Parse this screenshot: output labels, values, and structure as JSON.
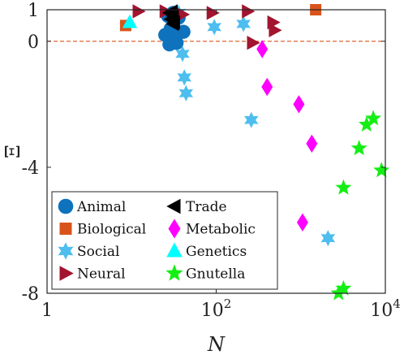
{
  "chart_data": {
    "type": "scatter",
    "xlabel": "N",
    "ylabel": "Ξ",
    "x_scale": "log",
    "xlim": [
      1,
      10000
    ],
    "ylim": [
      -8,
      1
    ],
    "x_ticks": [
      {
        "value": 1,
        "base": "1",
        "exp": ""
      },
      {
        "value": 100,
        "base": "10",
        "exp": "2"
      },
      {
        "value": 10000,
        "base": "10",
        "exp": "4"
      }
    ],
    "y_ticks": [
      {
        "value": 1,
        "label": "1"
      },
      {
        "value": 0,
        "label": "0"
      },
      {
        "value": -4,
        "label": "-4"
      },
      {
        "value": -8,
        "label": "-8"
      }
    ],
    "reference_line": {
      "y": 0,
      "color": "#d9541a",
      "style": "dashed"
    },
    "grid": false,
    "legend_position": "bottom-left",
    "series": [
      {
        "name": "Animal",
        "marker": "circle",
        "color": "#0e72bd",
        "points": [
          [
            25,
            0.2
          ],
          [
            27,
            0.8
          ],
          [
            28,
            -0.1
          ],
          [
            29,
            0.4
          ],
          [
            31,
            0.9
          ],
          [
            33,
            0.1
          ],
          [
            34,
            -0.05
          ],
          [
            36,
            0.75
          ],
          [
            41,
            0.3
          ]
        ]
      },
      {
        "name": "Biological",
        "marker": "square",
        "color": "#d9541a",
        "points": [
          [
            8.5,
            0.5
          ],
          [
            1500,
            1.0
          ]
        ]
      },
      {
        "name": "Social",
        "marker": "star6",
        "color": "#4dbeee",
        "points": [
          [
            36,
            0.9
          ],
          [
            40,
            -0.4
          ],
          [
            42,
            -1.15
          ],
          [
            44,
            -1.65
          ],
          [
            95,
            0.45
          ],
          [
            210,
            0.55
          ],
          [
            260,
            -2.5
          ],
          [
            2100,
            -6.25
          ]
        ]
      },
      {
        "name": "Neural",
        "marker": "triangle-right",
        "color": "#a2142f",
        "points": [
          [
            12,
            0.95
          ],
          [
            25,
            0.95
          ],
          [
            40,
            0.85
          ],
          [
            90,
            0.9
          ],
          [
            235,
            0.95
          ],
          [
            270,
            -0.05
          ],
          [
            470,
            0.6
          ],
          [
            490,
            0.35
          ]
        ]
      },
      {
        "name": "Trade",
        "marker": "triangle-left",
        "color": "#000000",
        "points": [
          [
            28,
            0.9
          ],
          [
            29,
            0.7
          ],
          [
            30,
            0.95
          ],
          [
            31,
            0.55
          ],
          [
            31,
            0.8
          ],
          [
            32,
            0.6
          ]
        ]
      },
      {
        "name": "Metabolic",
        "marker": "diamond",
        "color": "#ff00ff",
        "points": [
          [
            350,
            -0.25
          ],
          [
            400,
            -1.45
          ],
          [
            950,
            -2.0
          ],
          [
            1350,
            -3.25
          ],
          [
            1050,
            -5.75
          ]
        ]
      },
      {
        "name": "Genetics",
        "marker": "triangle-up",
        "color": "#00ffff",
        "points": [
          [
            9.5,
            0.6
          ]
        ]
      },
      {
        "name": "Gnutella",
        "marker": "star5",
        "color": "#15ee15",
        "points": [
          [
            2800,
            -8.0
          ],
          [
            3200,
            -7.85
          ],
          [
            3200,
            -4.65
          ],
          [
            4900,
            -3.4
          ],
          [
            6000,
            -2.65
          ],
          [
            7200,
            -2.45
          ],
          [
            9000,
            -4.1
          ]
        ]
      }
    ]
  }
}
